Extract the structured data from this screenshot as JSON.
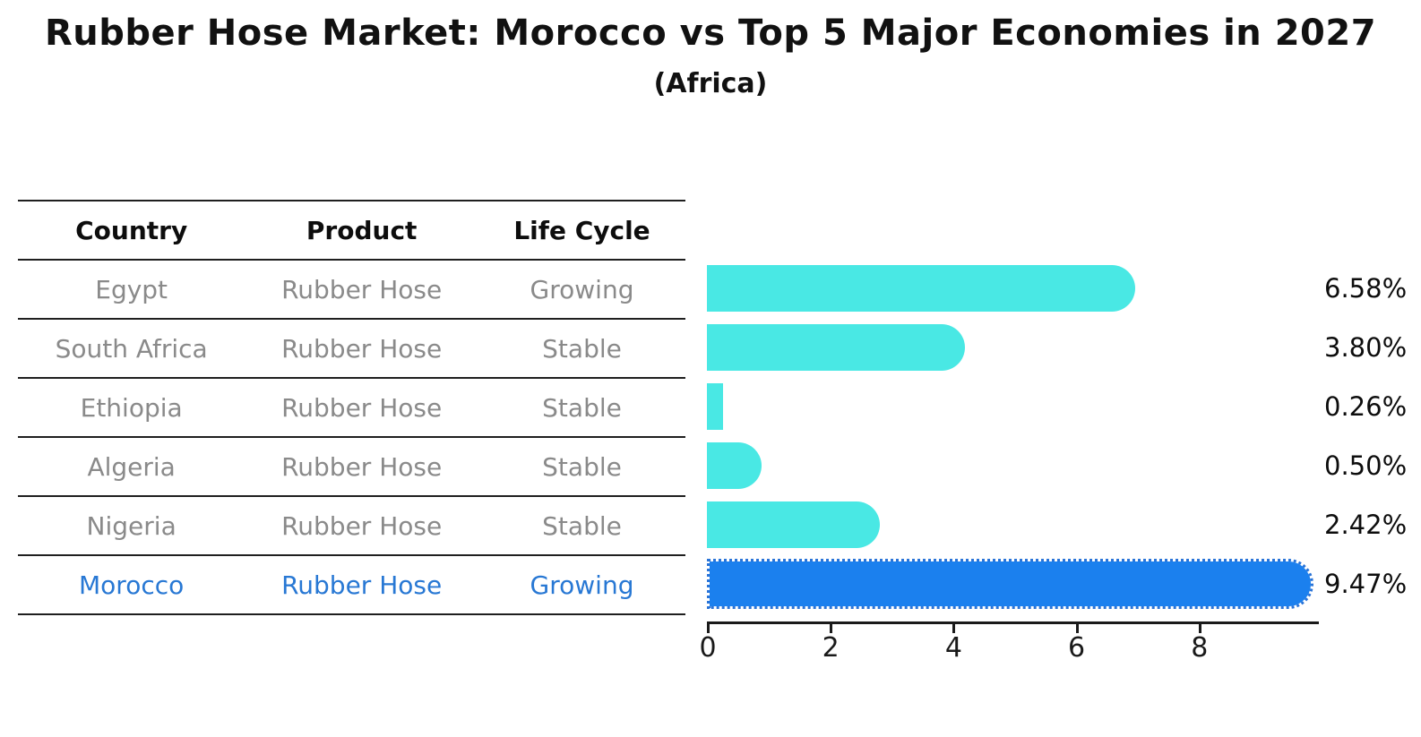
{
  "title": "Rubber Hose Market: Morocco vs Top 5 Major Economies in 2027",
  "subtitle": "(Africa)",
  "table": {
    "headers": [
      "Country",
      "Product",
      "Life Cycle"
    ],
    "rows": [
      {
        "country": "Egypt",
        "product": "Rubber Hose",
        "life_cycle": "Growing",
        "highlighted": false
      },
      {
        "country": "South Africa",
        "product": "Rubber Hose",
        "life_cycle": "Stable",
        "highlighted": false
      },
      {
        "country": "Ethiopia",
        "product": "Rubber Hose",
        "life_cycle": "Stable",
        "highlighted": false
      },
      {
        "country": "Algeria",
        "product": "Rubber Hose",
        "life_cycle": "Stable",
        "highlighted": false
      },
      {
        "country": "Nigeria",
        "product": "Rubber Hose",
        "life_cycle": "Stable",
        "highlighted": false
      },
      {
        "country": "Morocco",
        "product": "Rubber Hose",
        "life_cycle": "Growing",
        "highlighted": true
      }
    ]
  },
  "chart_data": {
    "type": "bar",
    "orientation": "horizontal",
    "title": "Rubber Hose Market: Morocco vs Top 5 Major Economies in 2027",
    "subtitle": "(Africa)",
    "categories": [
      "Egypt",
      "South Africa",
      "Ethiopia",
      "Algeria",
      "Nigeria",
      "Morocco"
    ],
    "values": [
      6.58,
      3.8,
      0.26,
      0.5,
      2.42,
      9.47
    ],
    "value_labels": [
      "6.58%",
      "3.80%",
      "0.26%",
      "0.50%",
      "2.42%",
      "9.47%"
    ],
    "highlight_index": 5,
    "xticks": [
      0,
      2,
      4,
      6,
      8
    ],
    "xlim": [
      0,
      10
    ],
    "xlabel": "",
    "ylabel": "",
    "grid": false,
    "legend": false
  },
  "colors": {
    "bar": "#49E8E4",
    "highlight_bar": "#1B80EE",
    "highlight_text": "#2878D4",
    "row_text": "#8A8A8A",
    "header_text": "#0D0D0D",
    "axis": "#1A1A1A"
  }
}
